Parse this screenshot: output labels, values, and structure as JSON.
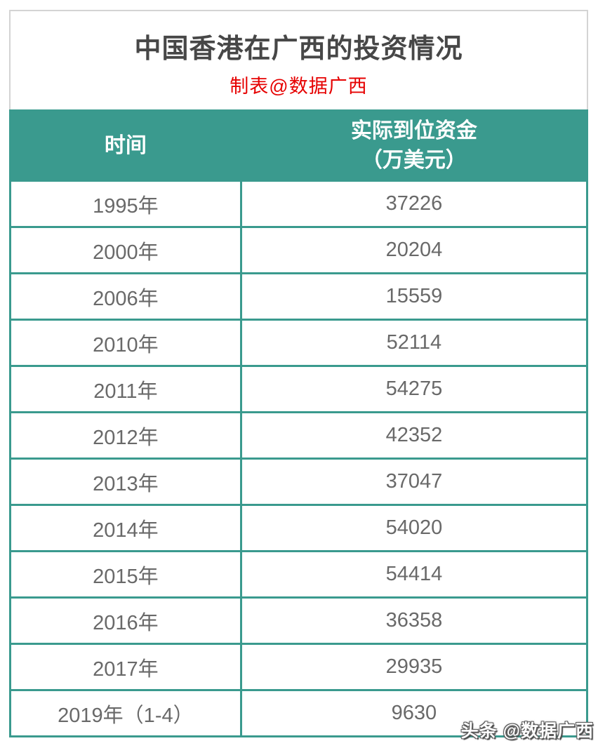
{
  "title": "中国香港在广西的投资情况",
  "subtitle": "制表@数据广西",
  "watermark": "头条 @数据广西",
  "colors": {
    "accent_teal": "#3a9a8e",
    "subtitle_red": "#e60000",
    "title_gray": "#474747",
    "cell_text_gray": "#696969",
    "card_border_gray": "#d4d4d4"
  },
  "table": {
    "header_time": "时间",
    "header_value_line1": "实际到位资金",
    "header_value_line2": "（万美元）",
    "rows": [
      {
        "year": "1995年",
        "value": "37226"
      },
      {
        "year": "2000年",
        "value": "20204"
      },
      {
        "year": "2006年",
        "value": "15559"
      },
      {
        "year": "2010年",
        "value": "52114"
      },
      {
        "year": "2011年",
        "value": "54275"
      },
      {
        "year": "2012年",
        "value": "42352"
      },
      {
        "year": "2013年",
        "value": "37047"
      },
      {
        "year": "2014年",
        "value": "54020"
      },
      {
        "year": "2015年",
        "value": "54414"
      },
      {
        "year": "2016年",
        "value": "36358"
      },
      {
        "year": "2017年",
        "value": "29935"
      },
      {
        "year": "2019年（1-4）",
        "value": "9630"
      }
    ]
  },
  "chart_data": {
    "type": "table",
    "title": "中国香港在广西的投资情况",
    "subtitle": "制表@数据广西",
    "columns": [
      "时间",
      "实际到位资金（万美元）"
    ],
    "categories": [
      "1995年",
      "2000年",
      "2006年",
      "2010年",
      "2011年",
      "2012年",
      "2013年",
      "2014年",
      "2015年",
      "2016年",
      "2017年",
      "2019年（1-4）"
    ],
    "values": [
      37226,
      20204,
      15559,
      52114,
      54275,
      42352,
      37047,
      54020,
      54414,
      36358,
      29935,
      9630
    ]
  }
}
